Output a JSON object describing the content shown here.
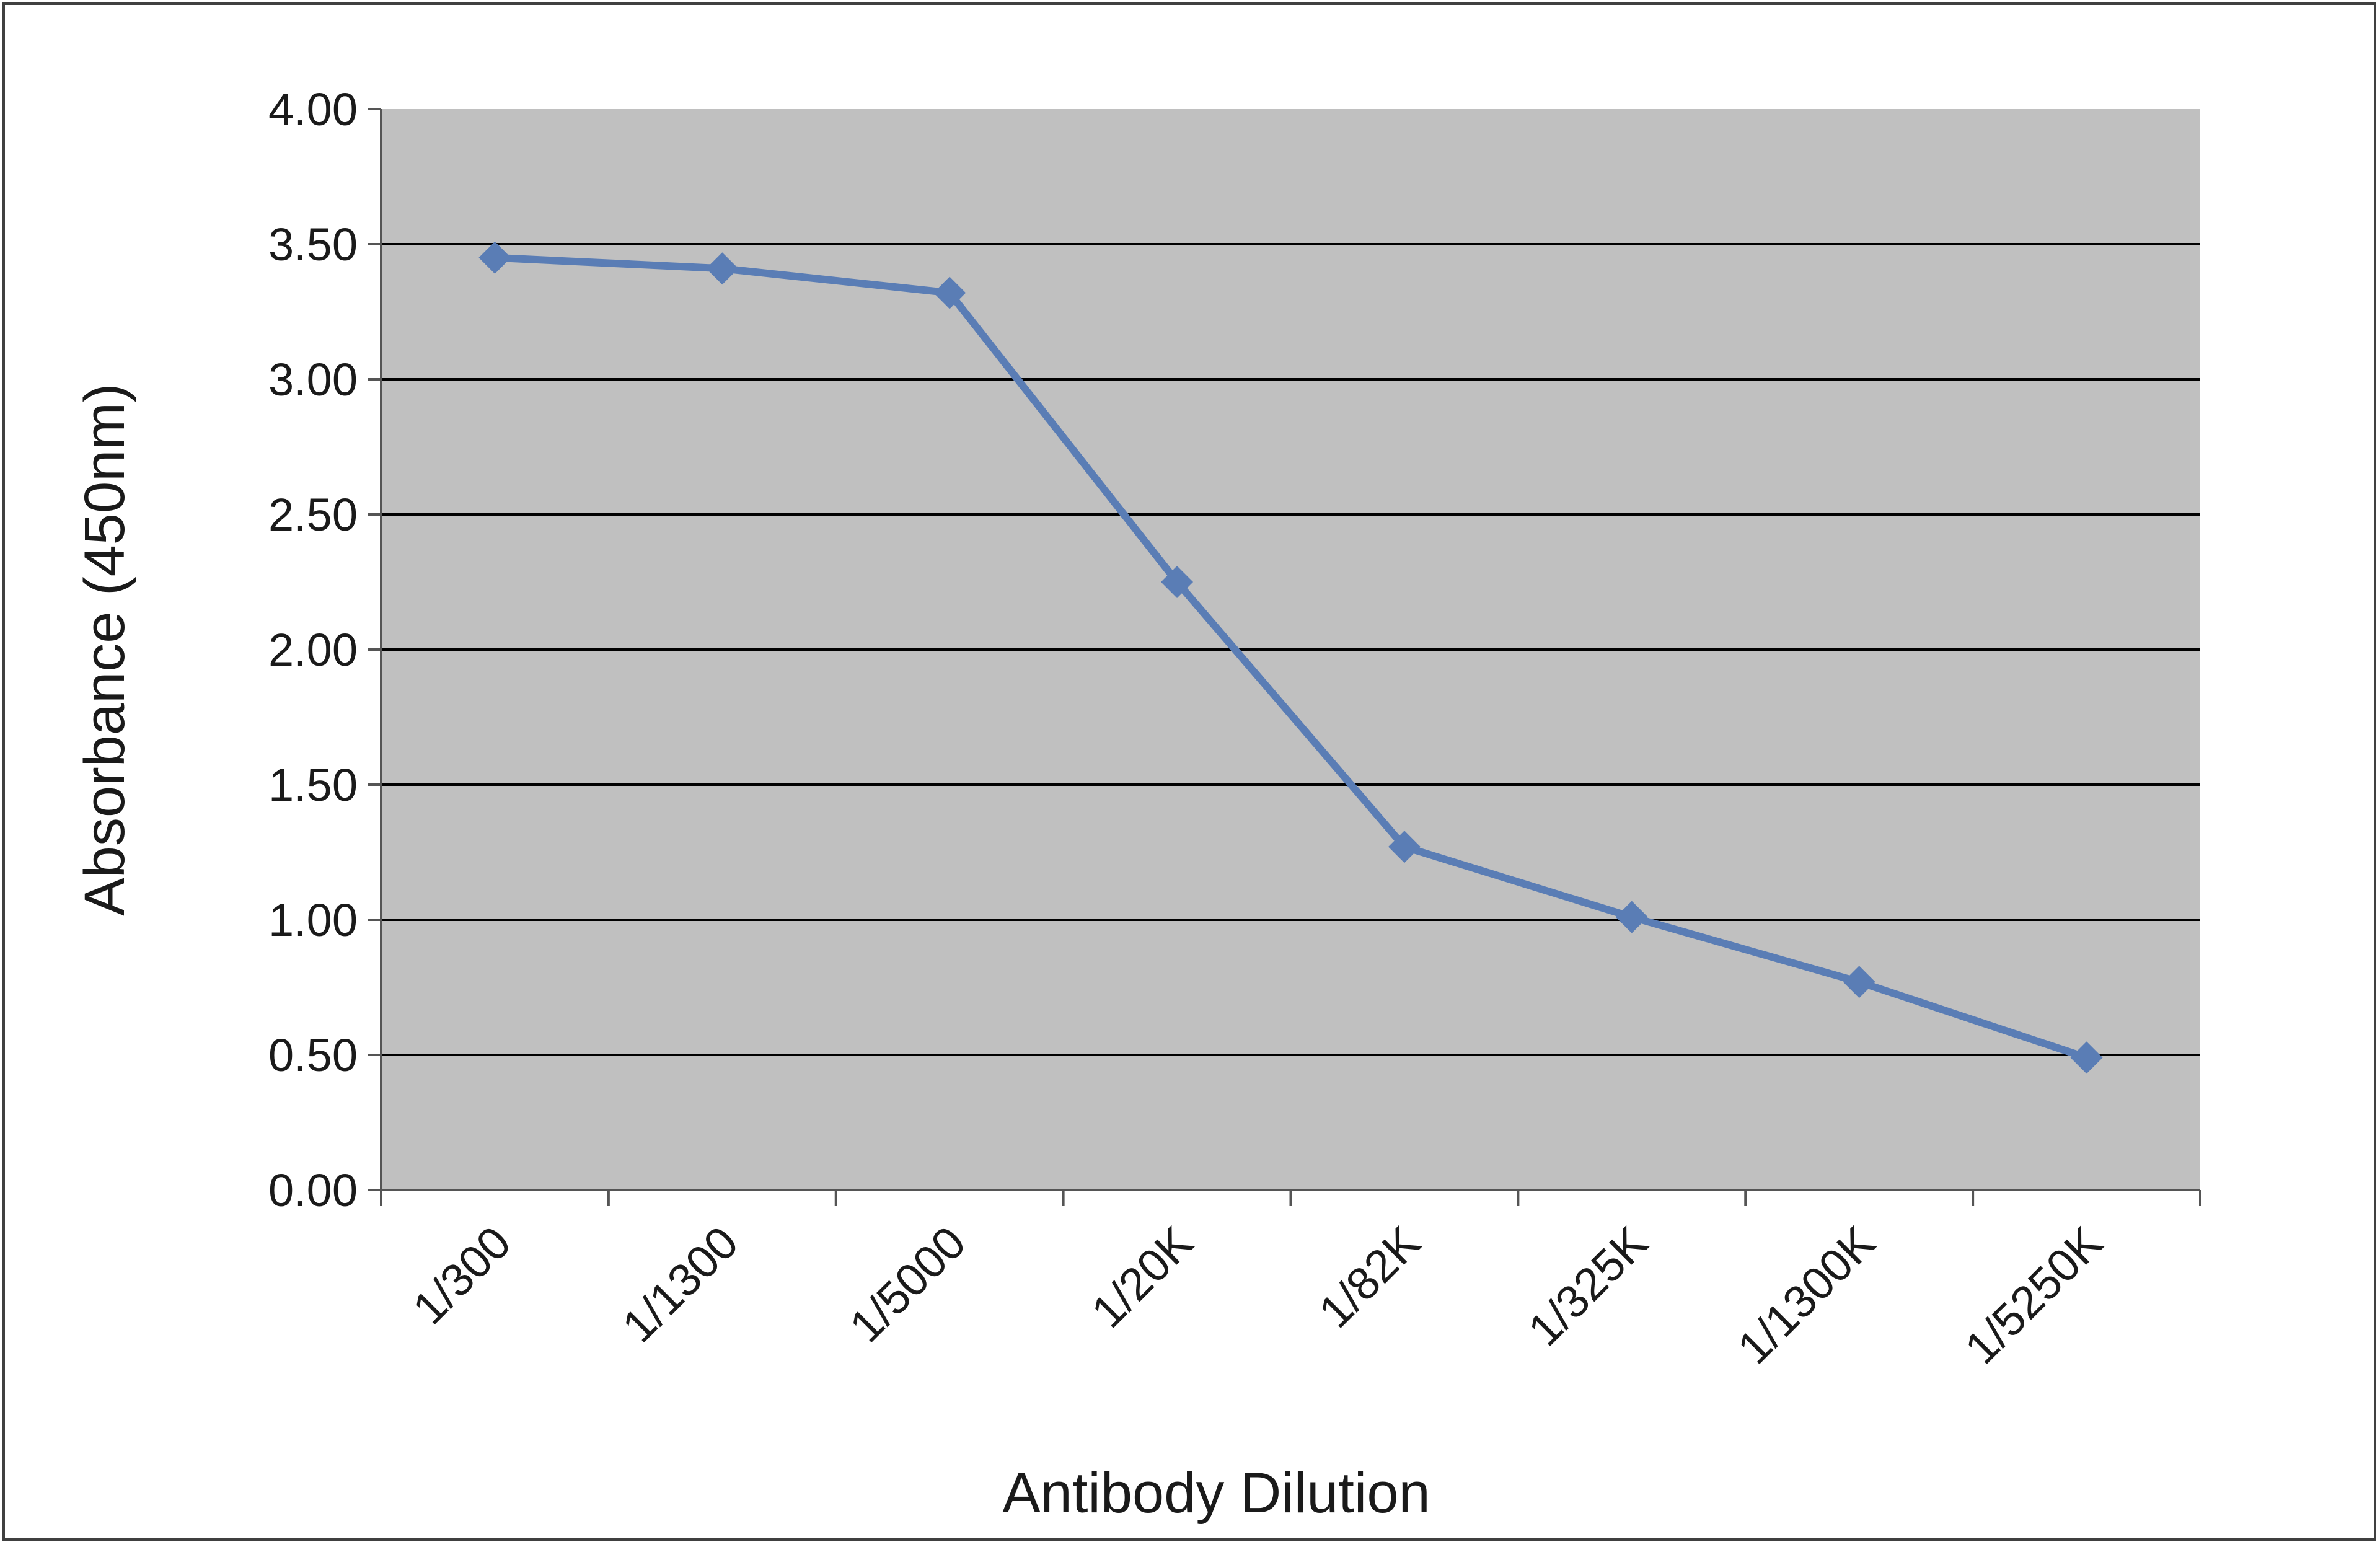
{
  "chart_data": {
    "type": "line",
    "title": "",
    "xlabel": "Antibody Dilution",
    "ylabel": "Absorbance (450nm)",
    "categories": [
      "1/300",
      "1/1300",
      "1/5000",
      "1/20K",
      "1/82K",
      "1/325K",
      "1/1300K",
      "1/5250K"
    ],
    "series": [
      {
        "values": [
          3.45,
          3.41,
          3.32,
          2.25,
          1.27,
          1.01,
          0.77,
          0.49
        ]
      }
    ],
    "ylim": [
      0,
      4
    ],
    "yticks": [
      "0.00",
      "0.50",
      "1.00",
      "1.50",
      "2.00",
      "2.50",
      "3.00",
      "3.50",
      "4.00"
    ],
    "grid": true,
    "legend": "none",
    "colors": {
      "plot_background": "#c0c0c0",
      "line": "#5a7db5",
      "gridline": "#000000",
      "axis": "#555555"
    }
  }
}
